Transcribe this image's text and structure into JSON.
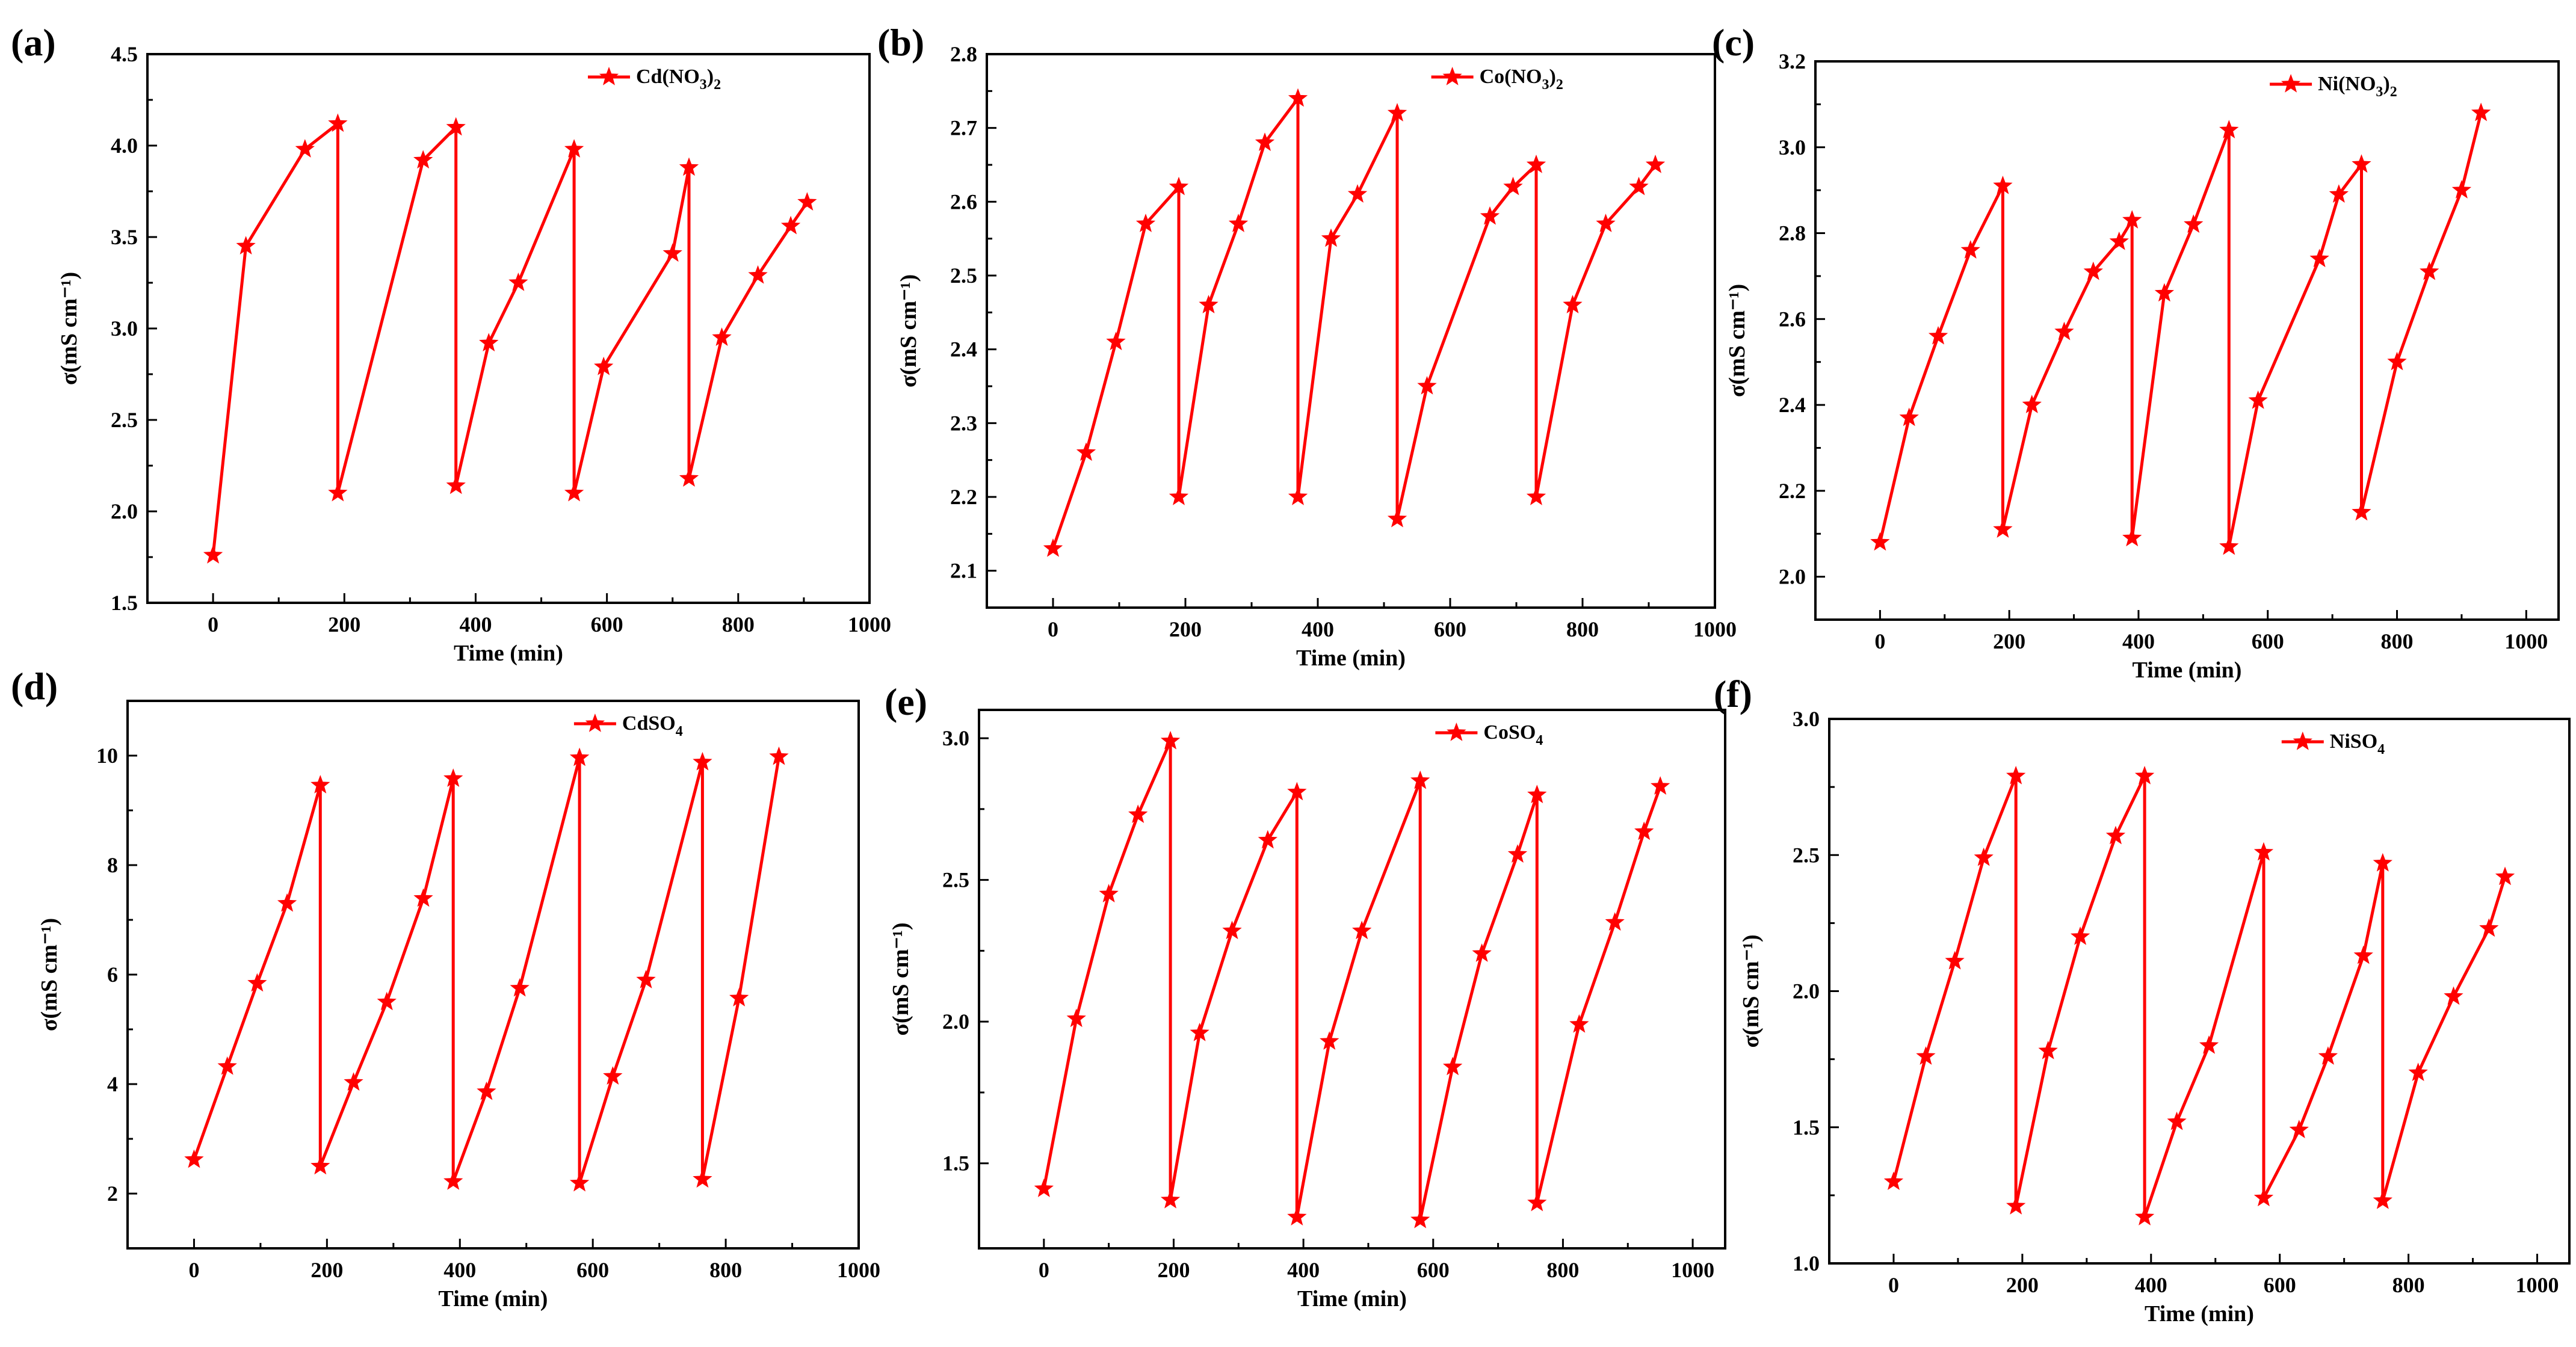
{
  "chart_data": [
    {
      "type": "line",
      "panel_label": "(a)",
      "xlabel": "Time (min)",
      "ylabel": "σ(mS cm⁻¹)",
      "legend": {
        "base": "Cd(NO",
        "sub": "3",
        "mid": ")",
        "sub2": "2",
        "full": "Cd(NO3)2",
        "position": "top-right"
      },
      "xlim": [
        -100,
        1000
      ],
      "ylim": [
        1.5,
        4.5
      ],
      "xticks": [
        0,
        200,
        400,
        600,
        800,
        1000
      ],
      "yticks": [
        1.5,
        2.0,
        2.5,
        3.0,
        3.5,
        4.0,
        4.5
      ],
      "yticks_labels": [
        "1.5",
        "2.0",
        "2.5",
        "3.0",
        "3.5",
        "4.0",
        "4.5"
      ],
      "color": "#ff0000",
      "x": [
        0,
        50,
        140,
        190,
        190,
        320,
        370,
        370,
        420,
        465,
        550,
        550,
        595,
        700,
        725,
        725,
        775,
        830,
        880,
        905
      ],
      "y": [
        1.76,
        3.45,
        3.98,
        4.12,
        2.1,
        3.92,
        4.1,
        2.14,
        2.92,
        3.25,
        3.98,
        2.1,
        2.79,
        3.41,
        3.88,
        2.18,
        2.95,
        3.29,
        3.56,
        3.69
      ]
    },
    {
      "type": "line",
      "panel_label": "(b)",
      "xlabel": "Time (min)",
      "ylabel": "σ(mS cm⁻¹)",
      "legend": {
        "base": "Co(NO",
        "sub": "3",
        "mid": ")",
        "sub2": "2",
        "full": "Co(NO3)2",
        "position": "top-right"
      },
      "xlim": [
        -100,
        1000
      ],
      "ylim": [
        2.05,
        2.8
      ],
      "xticks": [
        0,
        200,
        400,
        600,
        800,
        1000
      ],
      "yticks": [
        2.1,
        2.2,
        2.3,
        2.4,
        2.5,
        2.6,
        2.7,
        2.8
      ],
      "yticks_labels": [
        "2.1",
        "2.2",
        "2.3",
        "2.4",
        "2.5",
        "2.6",
        "2.7",
        "2.8"
      ],
      "color": "#ff0000",
      "x": [
        0,
        50,
        95,
        140,
        190,
        190,
        235,
        280,
        320,
        370,
        370,
        420,
        460,
        520,
        520,
        565,
        660,
        695,
        730,
        730,
        785,
        835,
        885,
        910
      ],
      "y": [
        2.13,
        2.26,
        2.41,
        2.57,
        2.62,
        2.2,
        2.46,
        2.57,
        2.68,
        2.74,
        2.2,
        2.55,
        2.61,
        2.72,
        2.17,
        2.35,
        2.58,
        2.62,
        2.65,
        2.2,
        2.46,
        2.57,
        2.62,
        2.65
      ]
    },
    {
      "type": "line",
      "panel_label": "(c)",
      "xlabel": "Time (min)",
      "ylabel": "σ(mS cm⁻¹)",
      "legend": {
        "base": "Ni(NO",
        "sub": "3",
        "mid": ")",
        "sub2": "2",
        "full": "Ni(NO3)2",
        "position": "top-right"
      },
      "xlim": [
        -100,
        1050
      ],
      "ylim": [
        1.9,
        3.2
      ],
      "xticks": [
        0,
        200,
        400,
        600,
        800,
        1000
      ],
      "yticks": [
        2.0,
        2.2,
        2.4,
        2.6,
        2.8,
        3.0,
        3.2
      ],
      "yticks_labels": [
        "2.0",
        "2.2",
        "2.4",
        "2.6",
        "2.8",
        "3.0",
        "3.2"
      ],
      "color": "#ff0000",
      "x": [
        0,
        45,
        90,
        140,
        190,
        190,
        235,
        285,
        330,
        370,
        390,
        390,
        440,
        485,
        540,
        540,
        585,
        680,
        710,
        745,
        745,
        800,
        850,
        900,
        930
      ],
      "y": [
        2.08,
        2.37,
        2.56,
        2.76,
        2.91,
        2.11,
        2.4,
        2.57,
        2.71,
        2.78,
        2.83,
        2.09,
        2.66,
        2.82,
        3.04,
        2.07,
        2.41,
        2.74,
        2.89,
        2.96,
        2.15,
        2.5,
        2.71,
        2.9,
        3.08
      ]
    },
    {
      "type": "line",
      "panel_label": "(d)",
      "xlabel": "Time (min)",
      "ylabel": "σ(mS cm⁻¹)",
      "legend": {
        "base": "CdSO",
        "sub": "4",
        "mid": "",
        "sub2": "",
        "full": "CdSO4",
        "position": "top-right"
      },
      "xlim": [
        -100,
        1000
      ],
      "ylim": [
        1,
        11
      ],
      "xticks": [
        0,
        200,
        400,
        600,
        800,
        1000
      ],
      "yticks": [
        2,
        4,
        6,
        8,
        10
      ],
      "yticks_labels": [
        "2",
        "4",
        "6",
        "8",
        "10"
      ],
      "color": "#ff0000",
      "x": [
        0,
        50,
        95,
        140,
        190,
        190,
        240,
        290,
        345,
        390,
        390,
        440,
        490,
        580,
        580,
        630,
        680,
        765,
        765,
        820,
        880
      ],
      "y": [
        2.62,
        4.32,
        5.84,
        7.3,
        9.46,
        2.5,
        4.03,
        5.5,
        7.39,
        9.58,
        2.22,
        3.86,
        5.75,
        9.96,
        2.19,
        4.14,
        5.9,
        9.88,
        2.26,
        5.57,
        9.98
      ]
    },
    {
      "type": "line",
      "panel_label": "(e)",
      "xlabel": "Time (min)",
      "ylabel": "σ(mS cm⁻¹)",
      "legend": {
        "base": "CoSO",
        "sub": "4",
        "mid": "",
        "sub2": "",
        "full": "CoSO4",
        "position": "top-right"
      },
      "xlim": [
        -100,
        1050
      ],
      "ylim": [
        1.2,
        3.1
      ],
      "xticks": [
        0,
        200,
        400,
        600,
        800,
        1000
      ],
      "yticks": [
        1.5,
        2.0,
        2.5,
        3.0
      ],
      "yticks_labels": [
        "1.5",
        "2.0",
        "2.5",
        "3.0"
      ],
      "color": "#ff0000",
      "x": [
        0,
        50,
        100,
        145,
        195,
        195,
        240,
        290,
        345,
        390,
        390,
        440,
        490,
        580,
        580,
        630,
        675,
        730,
        760,
        760,
        825,
        880,
        925,
        950
      ],
      "y": [
        1.41,
        2.01,
        2.45,
        2.73,
        2.99,
        1.37,
        1.96,
        2.32,
        2.64,
        2.81,
        1.31,
        1.93,
        2.32,
        2.85,
        1.3,
        1.84,
        2.24,
        2.59,
        2.8,
        1.36,
        1.99,
        2.35,
        2.67,
        2.83
      ]
    },
    {
      "type": "line",
      "panel_label": "(f)",
      "xlabel": "Time (min)",
      "ylabel": "σ(mS cm⁻¹)",
      "legend": {
        "base": "NiSO",
        "sub": "4",
        "mid": "",
        "sub2": "",
        "full": "NiSO4",
        "position": "top-right"
      },
      "xlim": [
        -100,
        1050
      ],
      "ylim": [
        1.0,
        3.0
      ],
      "xticks": [
        0,
        200,
        400,
        600,
        800,
        1000
      ],
      "yticks": [
        1.0,
        1.5,
        2.0,
        2.5,
        3.0
      ],
      "yticks_labels": [
        "1.0",
        "1.5",
        "2.0",
        "2.5",
        "3.0"
      ],
      "color": "#ff0000",
      "x": [
        0,
        50,
        95,
        140,
        190,
        190,
        240,
        290,
        345,
        390,
        390,
        440,
        490,
        575,
        575,
        630,
        675,
        730,
        760,
        760,
        815,
        870,
        925,
        950
      ],
      "y": [
        1.3,
        1.76,
        2.11,
        2.49,
        2.79,
        1.21,
        1.78,
        2.2,
        2.57,
        2.79,
        1.17,
        1.52,
        1.8,
        2.51,
        1.24,
        1.49,
        1.76,
        2.13,
        2.47,
        1.23,
        1.7,
        1.98,
        2.23,
        2.42
      ]
    }
  ]
}
